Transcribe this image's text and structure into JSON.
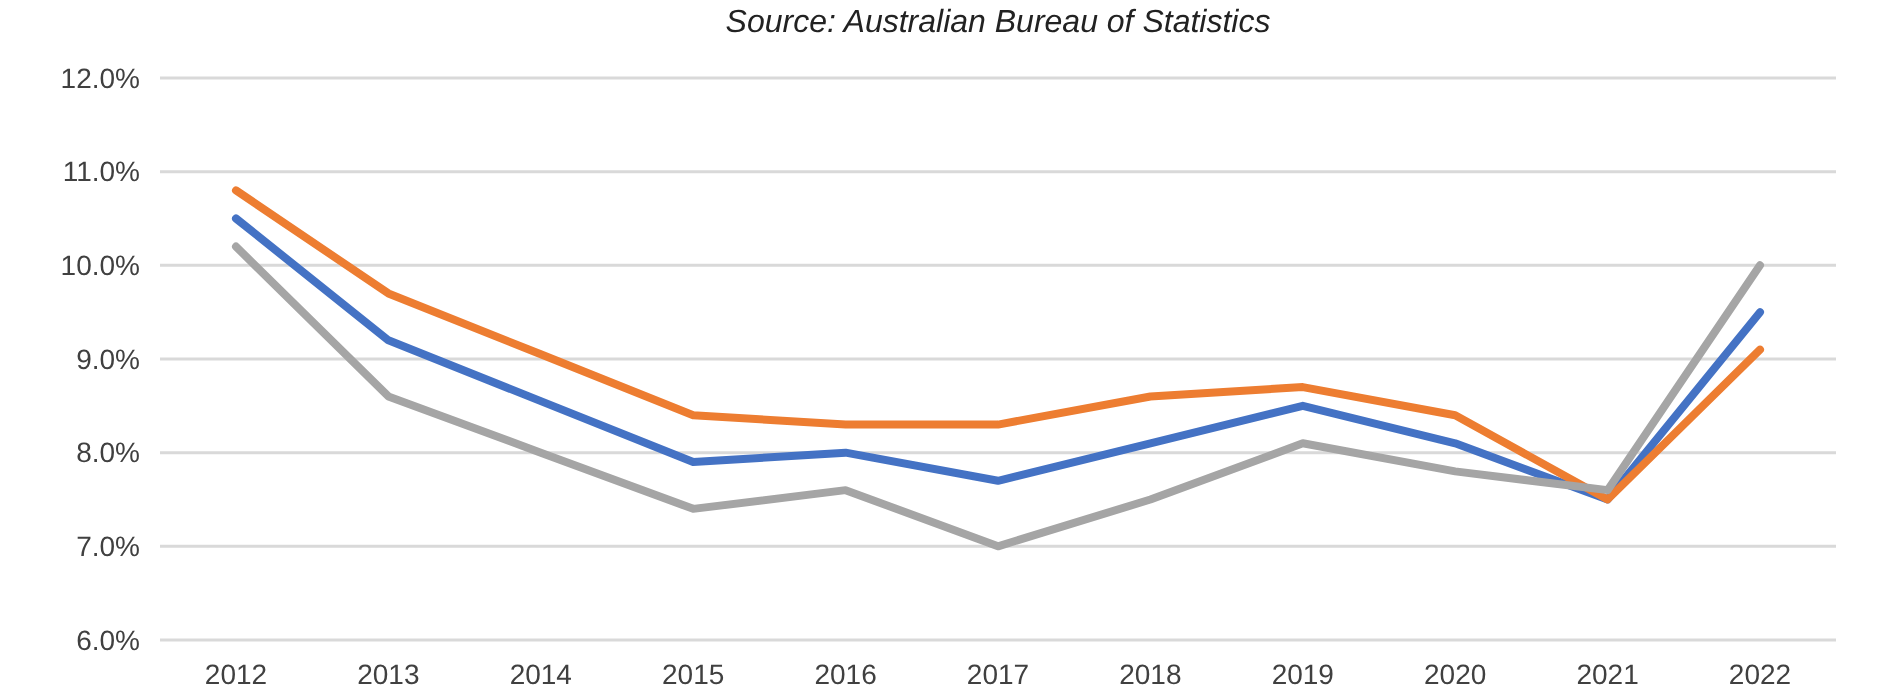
{
  "chart_data": {
    "type": "line",
    "annotations": [
      "Source: Australian Bureau of Statistics"
    ],
    "categories": [
      "2012",
      "2013",
      "2014",
      "2015",
      "2016",
      "2017",
      "2018",
      "2019",
      "2020",
      "2021",
      "2022"
    ],
    "series": [
      {
        "color": "#4472c4",
        "values": [
          10.5,
          9.2,
          8.55,
          7.9,
          8.0,
          7.7,
          8.1,
          8.5,
          8.1,
          7.5,
          9.5
        ]
      },
      {
        "color": "#ed7d31",
        "values": [
          10.8,
          9.7,
          9.05,
          8.4,
          8.3,
          8.3,
          8.6,
          8.7,
          8.4,
          7.5,
          9.1
        ]
      },
      {
        "color": "#a5a5a5",
        "values": [
          10.2,
          8.6,
          8.0,
          7.4,
          7.6,
          7.0,
          7.5,
          8.1,
          7.8,
          7.6,
          10.0
        ]
      }
    ],
    "ylim": [
      6,
      12
    ],
    "yticks": [
      {
        "value": 6,
        "label": "6.0%"
      },
      {
        "value": 7,
        "label": "7.0%"
      },
      {
        "value": 8,
        "label": "8.0%"
      },
      {
        "value": 9,
        "label": "9.0%"
      },
      {
        "value": 10,
        "label": "10.0%"
      },
      {
        "value": 11,
        "label": "11.0%"
      },
      {
        "value": 12,
        "label": "12.0%"
      }
    ],
    "grid": "y",
    "marker": "none",
    "line_style": "solid"
  }
}
